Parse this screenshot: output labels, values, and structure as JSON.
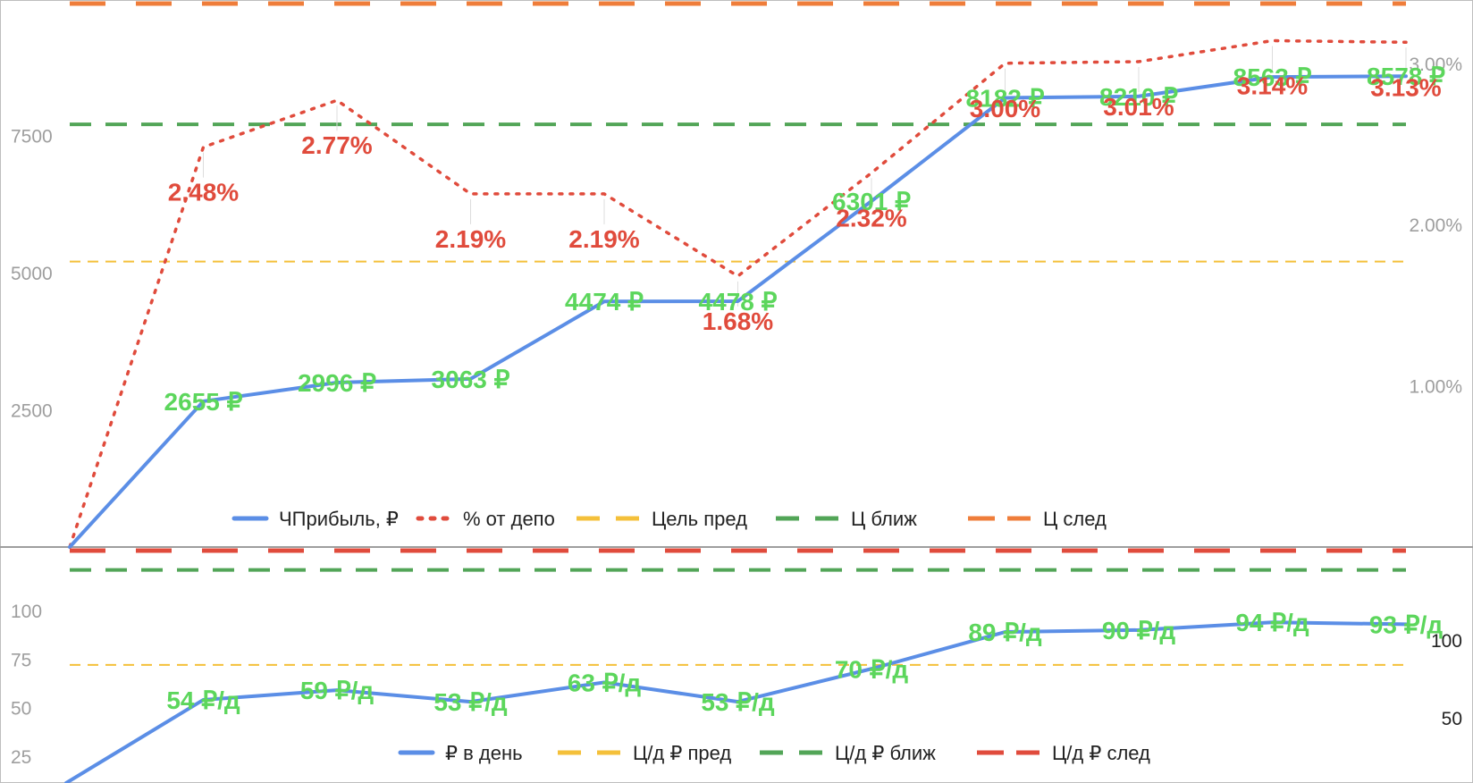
{
  "chart_data": [
    {
      "type": "line",
      "ylim": [
        0,
        9900
      ],
      "y_ticks": [
        "2500",
        "5000",
        "7500"
      ],
      "y2lim": [
        0,
        0.0337
      ],
      "y2_ticks": [
        "1.00%",
        "2.00%",
        "3.00%"
      ],
      "grid": false,
      "legend_position": "bottom",
      "x": [
        0,
        1,
        2,
        3,
        4,
        5,
        6,
        7,
        8,
        9,
        10
      ],
      "series": [
        {
          "name": "ЧПрибыль, ₽",
          "color": "#5b8ee6",
          "style": "solid",
          "axis": "left",
          "values": [
            0,
            2655,
            2996,
            3063,
            4474,
            4478,
            6301,
            8182,
            8210,
            8563,
            8578
          ],
          "labels": [
            "",
            "2655 ₽",
            "2996 ₽",
            "3063 ₽",
            "4474 ₽",
            "4478 ₽",
            "6301 ₽",
            "8182 ₽",
            "8210 ₽",
            "8563 ₽",
            "8578 ₽"
          ]
        },
        {
          "name": "% от депо",
          "color": "#e04b3c",
          "style": "dotted",
          "axis": "right",
          "values": [
            0,
            0.0248,
            0.0277,
            0.0219,
            0.0219,
            0.0168,
            0.0232,
            0.03,
            0.0301,
            0.0314,
            0.0313
          ],
          "labels": [
            "",
            "2.48%",
            "2.77%",
            "2.19%",
            "2.19%",
            "1.68%",
            "2.32%",
            "3.00%",
            "3.01%",
            "3.14%",
            "3.13%"
          ]
        },
        {
          "name": "Цель пред",
          "color": "#f4c03a",
          "style": "dashed-thin",
          "axis": "left",
          "constant": 5200
        },
        {
          "name": "Ц ближ",
          "color": "#52a557",
          "style": "dashed",
          "axis": "left",
          "constant": 7700
        },
        {
          "name": "Ц след",
          "color": "#ef7d3a",
          "style": "dashed-thick",
          "axis": "left",
          "constant": 9900
        }
      ]
    },
    {
      "type": "line",
      "ylim": [
        12,
        131
      ],
      "y_ticks": [
        "25",
        "50",
        "75",
        "100"
      ],
      "y2_ticks": [
        "50",
        "100"
      ],
      "grid": false,
      "legend_position": "bottom",
      "x": [
        0,
        1,
        2,
        3,
        4,
        5,
        6,
        7,
        8,
        9,
        10
      ],
      "series": [
        {
          "name": "₽ в день",
          "color": "#5b8ee6",
          "style": "solid",
          "values": [
            12,
            54,
            59,
            53,
            63,
            53,
            70,
            89,
            90,
            94,
            93
          ],
          "labels": [
            "",
            "54 ₽/д",
            "59 ₽/д",
            "53 ₽/д",
            "63 ₽/д",
            "53 ₽/д",
            "70 ₽/д",
            "89 ₽/д",
            "90 ₽/д",
            "94 ₽/д",
            "93 ₽/д"
          ]
        },
        {
          "name": "Ц/д ₽ пред",
          "color": "#f4c03a",
          "style": "dashed-thin",
          "constant": 72
        },
        {
          "name": "Ц/д ₽ ближ",
          "color": "#52a557",
          "style": "dashed",
          "constant": 121
        },
        {
          "name": "Ц/д ₽ след",
          "color": "#e04b3c",
          "style": "dashed-thick",
          "constant": 131
        }
      ]
    }
  ]
}
